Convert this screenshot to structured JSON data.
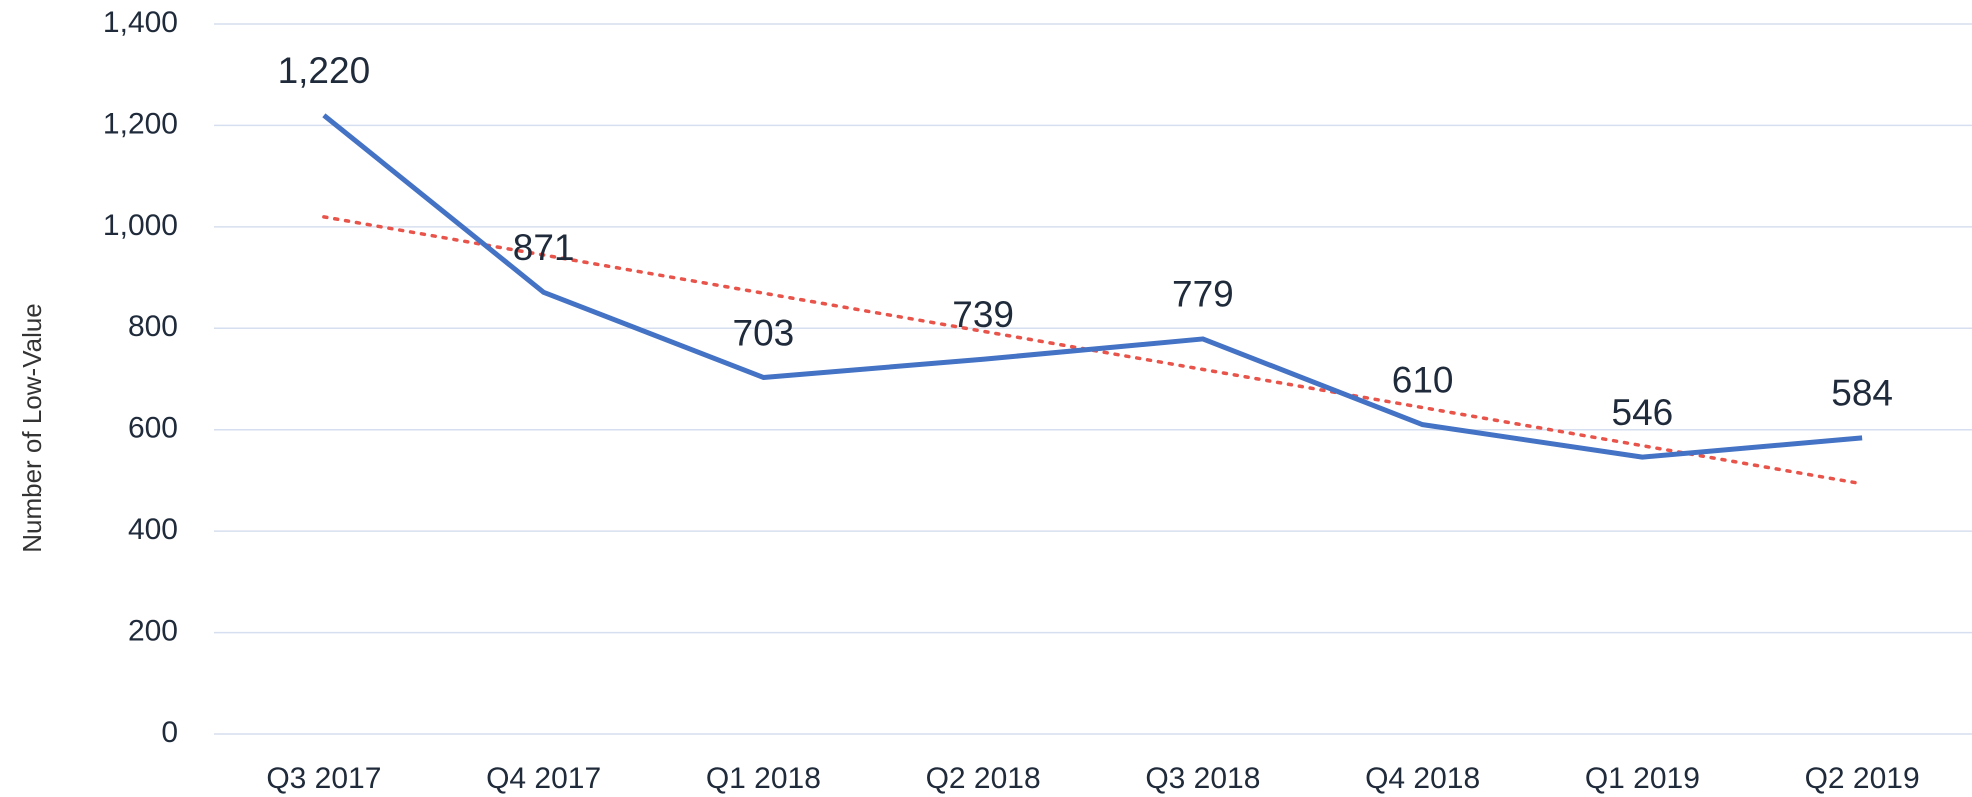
{
  "chart_data": {
    "type": "line",
    "y_label": "Number of Low-Value",
    "categories": [
      "Q3 2017",
      "Q4 2017",
      "Q1 2018",
      "Q2 2018",
      "Q3 2018",
      "Q4 2018",
      "Q1 2019",
      "Q2 2019"
    ],
    "series": [
      {
        "name": "Number of Low-Value",
        "color": "#4472c4",
        "values": [
          1220,
          871,
          703,
          739,
          779,
          610,
          546,
          584
        ],
        "value_labels": [
          "1,220",
          "871",
          "703",
          "739",
          "779",
          "610",
          "546",
          "584"
        ]
      }
    ],
    "trendline": {
      "type": "linear",
      "color": "#e8534a"
    },
    "ylim": [
      0,
      1400
    ],
    "yticks": [
      0,
      200,
      400,
      600,
      800,
      {
        "value": 1000,
        "label": "1,000"
      },
      {
        "value": 1200,
        "label": "1,200"
      },
      {
        "value": 1400,
        "label": "1,400"
      }
    ],
    "grid": true
  }
}
